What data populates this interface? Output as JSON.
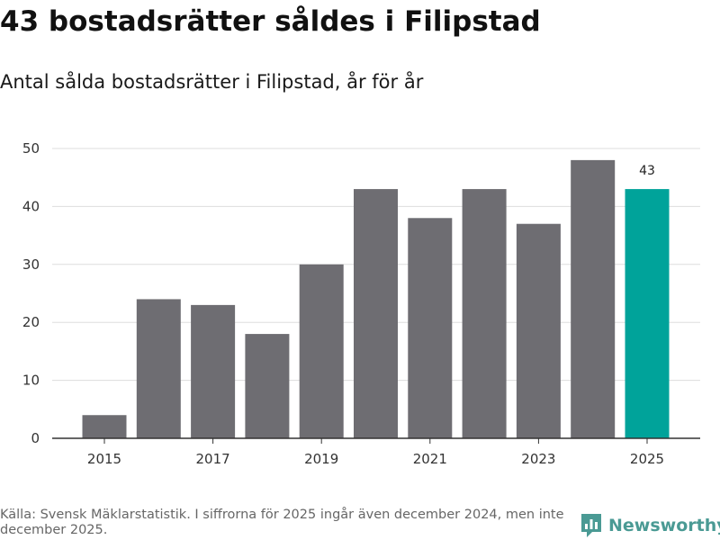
{
  "title": "43 bostadsrätter såldes i Filipstad",
  "subtitle": "Antal sålda bostadsrätter i Filipstad, år för år",
  "footer": {
    "source": "Källa: Svensk Mäklarstatistik. I siffrorna för 2025 ingår även december 2024, men inte december 2025."
  },
  "logo": {
    "text": "Newsworthy"
  },
  "colors": {
    "bar": "#6e6d72",
    "highlight": "#00a39a",
    "grid": "#dddddd",
    "axis": "#333333",
    "logo": "#4a9a94"
  },
  "chart_data": {
    "type": "bar",
    "categories": [
      "2015",
      "2016",
      "2017",
      "2018",
      "2019",
      "2020",
      "2021",
      "2022",
      "2023",
      "2024",
      "2025"
    ],
    "values": [
      4,
      24,
      23,
      18,
      30,
      43,
      38,
      43,
      37,
      48,
      43
    ],
    "highlight_index": 10,
    "data_labels": {
      "2025": "43"
    },
    "x_tick_labels": [
      "2015",
      "2017",
      "2019",
      "2021",
      "2023",
      "2025"
    ],
    "y_ticks": [
      0,
      10,
      20,
      30,
      40,
      50
    ],
    "ylim": [
      0,
      50
    ],
    "title": "43 bostadsrätter såldes i Filipstad",
    "xlabel": "",
    "ylabel": "",
    "grid": true
  }
}
